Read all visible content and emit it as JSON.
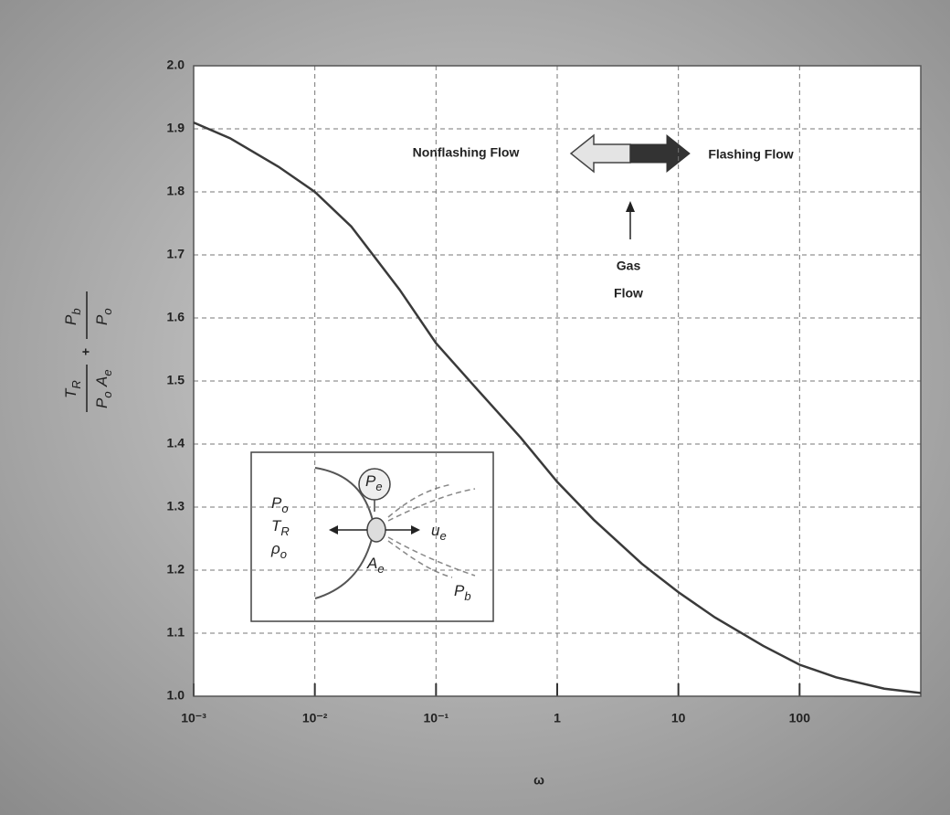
{
  "chart_data": {
    "type": "line",
    "x_label": "ω",
    "y_label": {
      "fraction1": {
        "numerator": [
          {
            "main": "T",
            "sub": "R"
          }
        ],
        "denominator": [
          {
            "main": "P",
            "sub": "o"
          },
          {
            "main": "A",
            "sub": "e"
          }
        ]
      },
      "operator": "+",
      "fraction2": {
        "numerator": [
          {
            "main": "P",
            "sub": "b"
          }
        ],
        "denominator": [
          {
            "main": "P",
            "sub": "o"
          }
        ]
      }
    },
    "x": [
      0.001,
      0.002,
      0.005,
      0.01,
      0.02,
      0.05,
      0.1,
      0.2,
      0.5,
      1,
      2,
      5,
      10,
      20,
      50,
      100,
      200,
      500,
      1000
    ],
    "series": [
      {
        "color": "#3a3a3a",
        "values": [
          1.91,
          1.885,
          1.84,
          1.8,
          1.745,
          1.645,
          1.56,
          1.495,
          1.41,
          1.34,
          1.28,
          1.21,
          1.165,
          1.125,
          1.08,
          1.05,
          1.03,
          1.012,
          1.005
        ]
      }
    ],
    "xlim": [
      0.001,
      1000
    ],
    "log_x": true,
    "xticks": [
      {
        "value": 0.001,
        "label": "10⁻³"
      },
      {
        "value": 0.01,
        "label": "10⁻²"
      },
      {
        "value": 0.1,
        "label": "10⁻¹"
      },
      1,
      10,
      100
    ],
    "ylim": [
      1,
      2
    ],
    "yticks": [
      {
        "value": 1,
        "label": "1.0"
      },
      1.1,
      1.2,
      1.3,
      1.4,
      1.5,
      1.6,
      1.7,
      1.8,
      1.9,
      {
        "value": 2,
        "label": "2.0"
      }
    ],
    "grid": true,
    "annotations": {
      "nonflashing": "Nonflashing Flow",
      "flashing": "Flashing Flow",
      "gas": [
        "Gas",
        "Flow"
      ]
    },
    "inset": {
      "left": [
        {
          "main": "P",
          "sub": "o"
        },
        {
          "main": "T",
          "sub": "R"
        },
        {
          "main": "ρ",
          "sub": "o"
        }
      ],
      "pe": {
        "main": "P",
        "sub": "e"
      },
      "ue": {
        "main": "u",
        "sub": "e"
      },
      "ae": {
        "main": "A",
        "sub": "e"
      },
      "pb": {
        "main": "P",
        "sub": "b"
      }
    }
  }
}
